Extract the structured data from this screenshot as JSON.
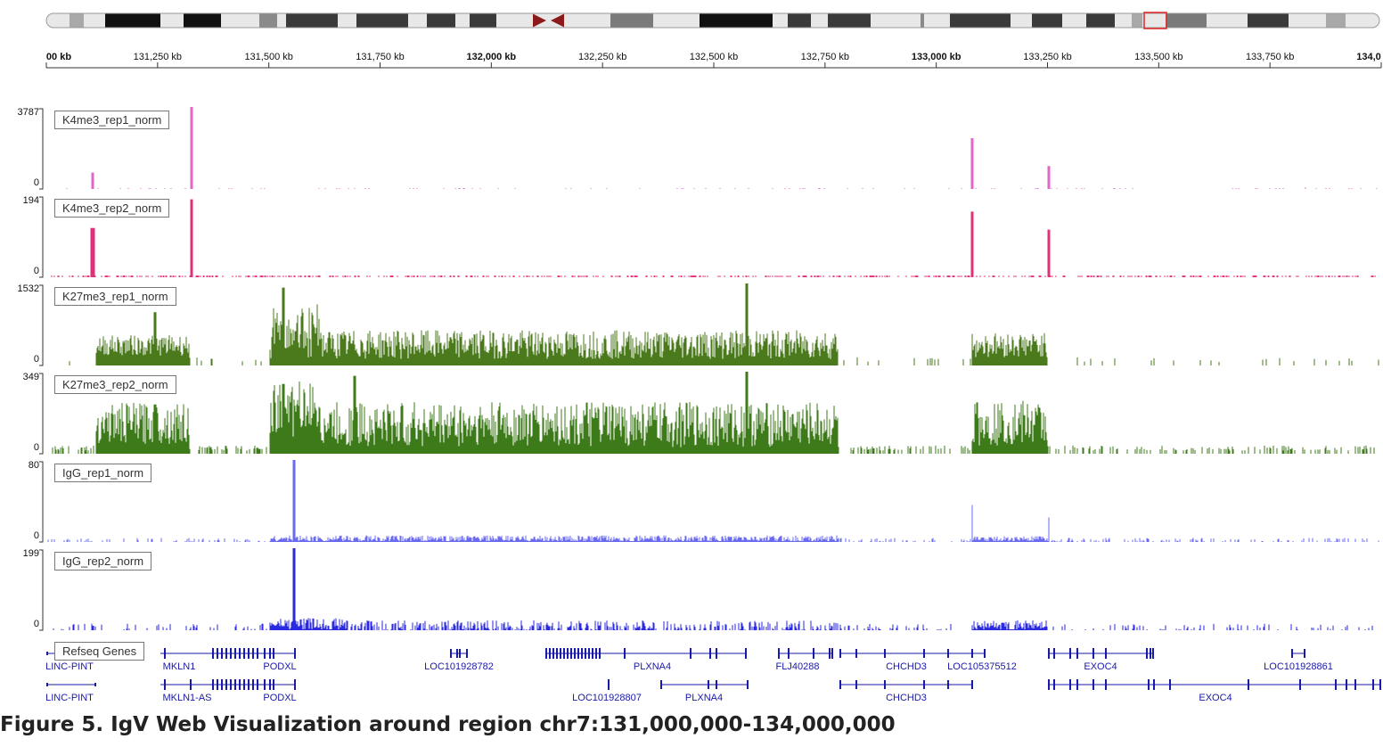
{
  "region": "chr7:131,000,000-134,000,000",
  "ruler": {
    "ticks": [
      {
        "label": "00 kb",
        "kb": 131000,
        "major": true
      },
      {
        "label": "131,250 kb",
        "kb": 131250,
        "major": false
      },
      {
        "label": "131,500 kb",
        "kb": 131500,
        "major": false
      },
      {
        "label": "131,750 kb",
        "kb": 131750,
        "major": false
      },
      {
        "label": "132,000 kb",
        "kb": 132000,
        "major": true
      },
      {
        "label": "132,250 kb",
        "kb": 132250,
        "major": false
      },
      {
        "label": "132,500 kb",
        "kb": 132500,
        "major": false
      },
      {
        "label": "132,750 kb",
        "kb": 132750,
        "major": false
      },
      {
        "label": "133,000 kb",
        "kb": 133000,
        "major": true
      },
      {
        "label": "133,250 kb",
        "kb": 133250,
        "major": false
      },
      {
        "label": "133,500 kb",
        "kb": 133500,
        "major": false
      },
      {
        "label": "133,750 kb",
        "kb": 133750,
        "major": false
      },
      {
        "label": "134,0",
        "kb": 134000,
        "major": true
      }
    ]
  },
  "tracks": [
    {
      "name": "K4me3_rep1_norm",
      "max": "3787",
      "min": "0",
      "color": "#e066c8",
      "profile": "k4me3_1"
    },
    {
      "name": "K4me3_rep2_norm",
      "max": "194",
      "min": "0",
      "color": "#e0307a",
      "profile": "k4me3_2"
    },
    {
      "name": "K27me3_rep1_norm",
      "max": "1532",
      "min": "0",
      "color": "#4a7a1c",
      "profile": "k27_1"
    },
    {
      "name": "K27me3_rep2_norm",
      "max": "349",
      "min": "0",
      "color": "#3d7a1a",
      "profile": "k27_2"
    },
    {
      "name": "IgG_rep1_norm",
      "max": "80",
      "min": "0",
      "color": "#6a6af0",
      "profile": "igg_1"
    },
    {
      "name": "IgG_rep2_norm",
      "max": "199",
      "min": "0",
      "color": "#2a2ae0",
      "profile": "igg_2"
    }
  ],
  "genes": {
    "track_name": "Refseq Genes",
    "row1": [
      "LINC-PINT",
      "MKLN1",
      "PODXL",
      "LOC101928782",
      "PLXNA4",
      "FLJ40288",
      "CHCHD3",
      "LOC105375512",
      "EXOC4",
      "LOC101928861"
    ],
    "row2": [
      "LINC-PINT",
      "MKLN1-AS",
      "PODXL",
      "LOC101928807",
      "PLXNA4",
      "CHCHD3",
      "EXOC4"
    ]
  },
  "caption": "Figure 5. IgV Web Visualization around region chr7:131,000,000-134,000,000"
}
